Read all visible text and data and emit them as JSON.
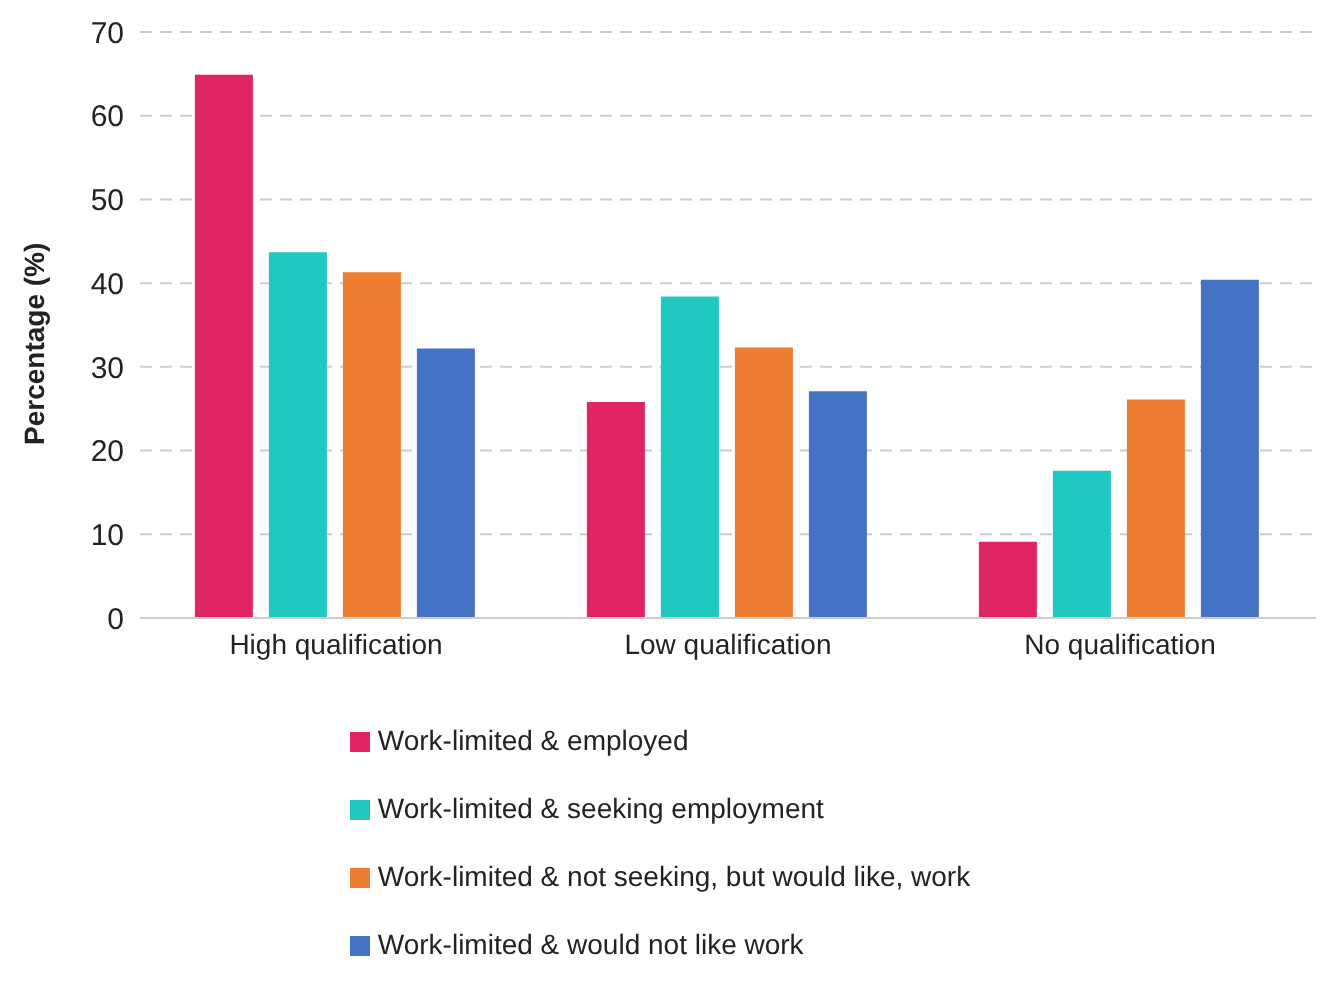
{
  "chart_data": {
    "type": "bar",
    "ylabel": "Percentage (%)",
    "categories": [
      "High qualification",
      "Low qualification",
      "No qualification"
    ],
    "series": [
      {
        "name": "Work-limited & employed",
        "color": "#e02464",
        "values": [
          64.9,
          25.8,
          9.1
        ]
      },
      {
        "name": "Work-limited & seeking employment",
        "color": "#20c9bf",
        "values": [
          43.7,
          38.4,
          17.6
        ]
      },
      {
        "name": "Work-limited & not seeking, but would like, work",
        "color": "#ed7d31",
        "values": [
          41.3,
          32.3,
          26.1
        ]
      },
      {
        "name": "Work-limited & would not like work",
        "color": "#4472c4",
        "values": [
          32.2,
          27.1,
          40.4
        ]
      }
    ],
    "ylim": [
      0,
      70
    ],
    "yticks": [
      0,
      10,
      20,
      30,
      40,
      50,
      60,
      70
    ],
    "grid": "y",
    "legend": "bottom"
  }
}
